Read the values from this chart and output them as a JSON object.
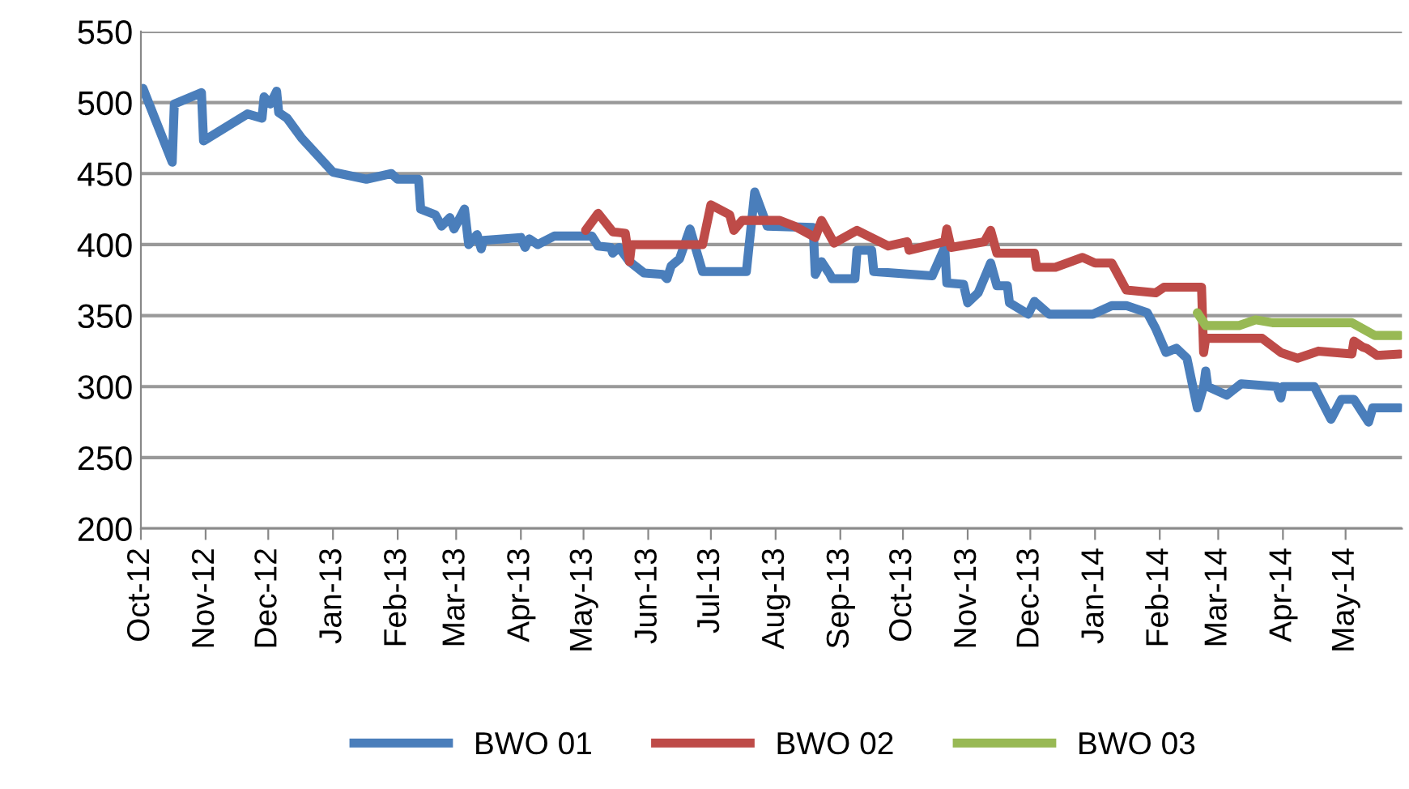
{
  "chart_data": {
    "type": "line",
    "grid": "y",
    "legend": "bottom",
    "marker": "none",
    "line_style": "solid",
    "ylim": [
      200,
      550
    ],
    "yticks": [
      200,
      250,
      300,
      350,
      400,
      450,
      500,
      550
    ],
    "xlim": [
      "2012-10-01",
      "2014-05-28"
    ],
    "xticks": [
      {
        "value": "2012-10-01",
        "label": "Oct-12"
      },
      {
        "value": "2012-11-01",
        "label": "Nov-12"
      },
      {
        "value": "2012-12-01",
        "label": "Dec-12"
      },
      {
        "value": "2013-01-01",
        "label": "Jan-13"
      },
      {
        "value": "2013-02-01",
        "label": "Feb-13"
      },
      {
        "value": "2013-03-01",
        "label": "Mar-13"
      },
      {
        "value": "2013-04-01",
        "label": "Apr-13"
      },
      {
        "value": "2013-05-01",
        "label": "May-13"
      },
      {
        "value": "2013-06-01",
        "label": "Jun-13"
      },
      {
        "value": "2013-07-01",
        "label": "Jul-13"
      },
      {
        "value": "2013-08-01",
        "label": "Aug-13"
      },
      {
        "value": "2013-09-01",
        "label": "Sep-13"
      },
      {
        "value": "2013-10-01",
        "label": "Oct-13"
      },
      {
        "value": "2013-11-01",
        "label": "Nov-13"
      },
      {
        "value": "2013-12-01",
        "label": "Dec-13"
      },
      {
        "value": "2014-01-01",
        "label": "Jan-14"
      },
      {
        "value": "2014-02-01",
        "label": "Feb-14"
      },
      {
        "value": "2014-03-01",
        "label": "Mar-14"
      },
      {
        "value": "2014-04-01",
        "label": "Apr-14"
      },
      {
        "value": "2014-05-01",
        "label": "May-14"
      }
    ],
    "series": [
      {
        "name": "BWO 01",
        "color": "#4a7ebb",
        "x": [
          "2012-10-02",
          "2012-10-16",
          "2012-10-17",
          "2012-10-30",
          "2012-10-31",
          "2012-11-21",
          "2012-11-28",
          "2012-11-29",
          "2012-12-02",
          "2012-12-05",
          "2012-12-06",
          "2012-12-10",
          "2012-12-17",
          "2013-01-01",
          "2013-01-17",
          "2013-01-29",
          "2013-02-01",
          "2013-02-11",
          "2013-02-12",
          "2013-02-19",
          "2013-02-22",
          "2013-02-26",
          "2013-02-28",
          "2013-03-05",
          "2013-03-07",
          "2013-03-11",
          "2013-03-13",
          "2013-03-14",
          "2013-04-01",
          "2013-04-03",
          "2013-04-05",
          "2013-04-09",
          "2013-04-17",
          "2013-05-05",
          "2013-05-08",
          "2013-05-14",
          "2013-05-15",
          "2013-05-18",
          "2013-05-23",
          "2013-05-30",
          "2013-06-08",
          "2013-06-10",
          "2013-06-12",
          "2013-06-16",
          "2013-06-21",
          "2013-06-27",
          "2013-07-18",
          "2013-07-22",
          "2013-07-28",
          "2013-08-19",
          "2013-08-20",
          "2013-08-23",
          "2013-08-27",
          "2013-08-28",
          "2013-09-08",
          "2013-09-09",
          "2013-09-16",
          "2013-09-17",
          "2013-10-15",
          "2013-10-21",
          "2013-10-22",
          "2013-10-30",
          "2013-11-01",
          "2013-11-06",
          "2013-11-12",
          "2013-11-15",
          "2013-11-20",
          "2013-11-21",
          "2013-11-30",
          "2013-12-03",
          "2013-12-10",
          "2013-12-31",
          "2014-01-09",
          "2014-01-16",
          "2014-01-26",
          "2014-01-30",
          "2014-02-04",
          "2014-02-09",
          "2014-02-14",
          "2014-02-19",
          "2014-02-22",
          "2014-02-23",
          "2014-02-24",
          "2014-03-05",
          "2014-03-12",
          "2014-03-29",
          "2014-03-31",
          "2014-04-01",
          "2014-04-16",
          "2014-04-24",
          "2014-04-29",
          "2014-05-05",
          "2014-05-12",
          "2014-05-14",
          "2014-05-27"
        ],
        "values": [
          510,
          458,
          499,
          507,
          473,
          492,
          489,
          504,
          499,
          508,
          493,
          489,
          475,
          451,
          446,
          450,
          446,
          446,
          425,
          421,
          413,
          419,
          411,
          425,
          400,
          407,
          397,
          403,
          405,
          398,
          404,
          400,
          406,
          406,
          399,
          398,
          394,
          398,
          388,
          380,
          379,
          376,
          385,
          390,
          411,
          381,
          381,
          437,
          413,
          412,
          379,
          388,
          379,
          376,
          376,
          396,
          396,
          381,
          378,
          398,
          373,
          372,
          359,
          366,
          387,
          371,
          371,
          359,
          351,
          360,
          351,
          351,
          357,
          357,
          352,
          341,
          324,
          327,
          320,
          285,
          300,
          311,
          300,
          294,
          302,
          300,
          292,
          300,
          300,
          277,
          291,
          291,
          275,
          285,
          285
        ]
      },
      {
        "name": "BWO 02",
        "color": "#be4b48",
        "x": [
          "2013-05-02",
          "2013-05-08",
          "2013-05-15",
          "2013-05-21",
          "2013-05-23",
          "2013-05-24",
          "2013-06-27",
          "2013-07-01",
          "2013-07-10",
          "2013-07-12",
          "2013-07-16",
          "2013-08-03",
          "2013-08-10",
          "2013-08-20",
          "2013-08-23",
          "2013-08-29",
          "2013-09-09",
          "2013-09-24",
          "2013-10-03",
          "2013-10-04",
          "2013-10-21",
          "2013-10-22",
          "2013-10-24",
          "2013-11-09",
          "2013-11-12",
          "2013-11-15",
          "2013-12-03",
          "2013-12-04",
          "2013-12-13",
          "2013-12-26",
          "2014-01-01",
          "2014-01-09",
          "2014-01-16",
          "2014-01-30",
          "2014-02-03",
          "2014-02-21",
          "2014-02-22",
          "2014-02-23",
          "2014-03-22",
          "2014-03-31",
          "2014-04-08",
          "2014-04-18",
          "2014-05-04",
          "2014-05-05",
          "2014-05-09",
          "2014-05-11",
          "2014-05-16",
          "2014-05-27"
        ],
        "values": [
          410,
          422,
          409,
          408,
          388,
          400,
          400,
          428,
          421,
          410,
          417,
          417,
          413,
          405,
          417,
          401,
          410,
          399,
          402,
          396,
          402,
          411,
          398,
          402,
          410,
          394,
          394,
          384,
          384,
          391,
          387,
          387,
          368,
          366,
          370,
          370,
          324,
          334,
          334,
          324,
          320,
          325,
          323,
          332,
          328,
          327,
          322,
          323
        ]
      },
      {
        "name": "BWO 03",
        "color": "#98b954",
        "x": [
          "2014-02-19",
          "2014-02-23",
          "2014-03-11",
          "2014-03-19",
          "2014-03-27",
          "2014-05-04",
          "2014-05-15",
          "2014-05-27"
        ],
        "values": [
          352,
          343,
          343,
          347,
          345,
          345,
          336,
          336
        ]
      }
    ]
  }
}
